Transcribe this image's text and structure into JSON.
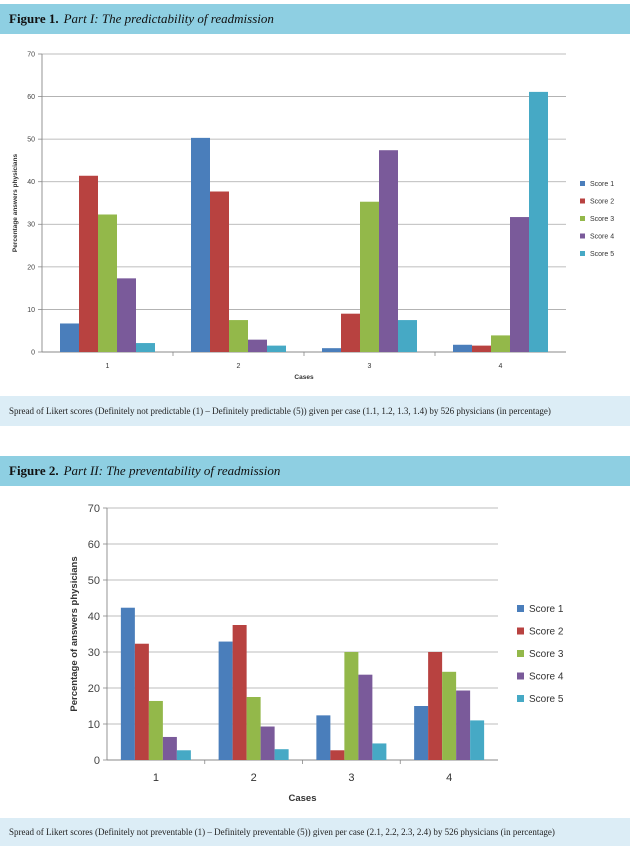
{
  "figures": [
    {
      "label": "Figure 1.",
      "title": "Part I: The predictability of readmission",
      "caption": "Spread of Likert scores (Definitely not predictable (1) – Definitely predictable (5)) given per case (1.1, 1.2, 1.3, 1.4) by 526 physicians (in percentage)"
    },
    {
      "label": "Figure 2.",
      "title": "Part II: The preventability of readmission",
      "caption": "Spread of Likert scores (Definitely not preventable (1) – Definitely preventable (5)) given per case (2.1, 2.2, 2.3, 2.4) by 526 physicians (in percentage)"
    }
  ],
  "colors": [
    "#4a7ebb",
    "#b84240",
    "#93b84a",
    "#7a5a9a",
    "#46a9c5"
  ],
  "chart_data": [
    {
      "type": "bar",
      "categories": [
        "1",
        "2",
        "3",
        "4"
      ],
      "series": [
        {
          "name": "Score 1",
          "values": [
            6.7,
            50.3,
            0.9,
            1.7
          ]
        },
        {
          "name": "Score 2",
          "values": [
            41.4,
            37.7,
            9.0,
            1.5
          ]
        },
        {
          "name": "Score 3",
          "values": [
            32.3,
            7.5,
            35.3,
            3.9
          ]
        },
        {
          "name": "Score 4",
          "values": [
            17.3,
            2.9,
            47.4,
            31.7
          ]
        },
        {
          "name": "Score 5",
          "values": [
            2.1,
            1.5,
            7.5,
            61.1
          ]
        }
      ],
      "xlabel": "Cases",
      "ylabel": "Percentage answers physicians",
      "ylim": [
        0,
        70
      ],
      "yticks": [
        0,
        10,
        20,
        30,
        40,
        50,
        60,
        70
      ],
      "grid": true,
      "legend": "right"
    },
    {
      "type": "bar",
      "categories": [
        "1",
        "2",
        "3",
        "4"
      ],
      "series": [
        {
          "name": "Score 1",
          "values": [
            42.3,
            32.9,
            12.4,
            15.0
          ]
        },
        {
          "name": "Score 2",
          "values": [
            32.3,
            37.5,
            2.7,
            30.0
          ]
        },
        {
          "name": "Score 3",
          "values": [
            16.4,
            17.5,
            30.0,
            24.5
          ]
        },
        {
          "name": "Score 4",
          "values": [
            6.4,
            9.3,
            23.7,
            19.3
          ]
        },
        {
          "name": "Score 5",
          "values": [
            2.7,
            3.0,
            4.6,
            11.0
          ]
        }
      ],
      "xlabel": "Cases",
      "ylabel": "Percentage of answers physicians",
      "ylim": [
        0,
        70
      ],
      "yticks": [
        0,
        10,
        20,
        30,
        40,
        50,
        60,
        70
      ],
      "grid": true,
      "legend": "right"
    }
  ]
}
